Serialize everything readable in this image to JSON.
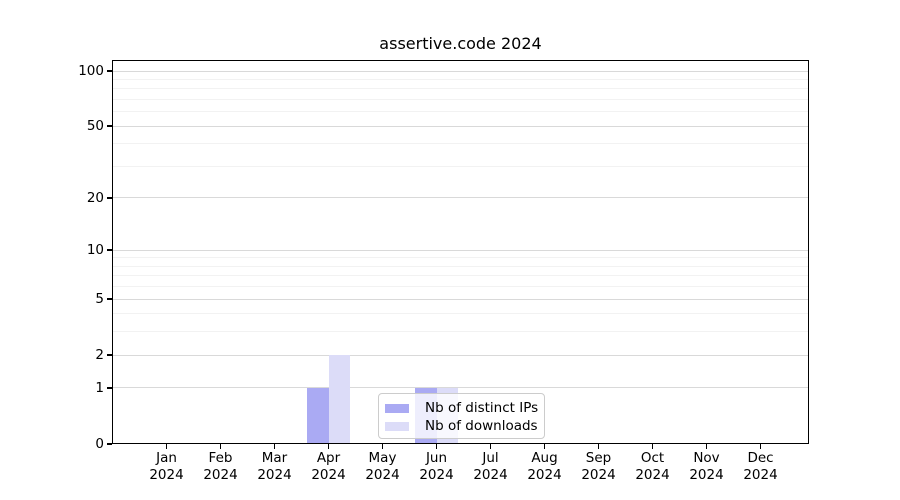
{
  "chart_data": {
    "type": "bar",
    "title": "assertive.code 2024",
    "categories": [
      "Jan",
      "Feb",
      "Mar",
      "Apr",
      "May",
      "Jun",
      "Jul",
      "Aug",
      "Sep",
      "Oct",
      "Nov",
      "Dec"
    ],
    "x_tick_year": "2024",
    "series": [
      {
        "name": "Nb of distinct IPs",
        "color": "#aaaaf3",
        "values": [
          0,
          0,
          0,
          1,
          0,
          1,
          0,
          0,
          0,
          0,
          0,
          0
        ]
      },
      {
        "name": "Nb of downloads",
        "color": "#dcdcf8",
        "values": [
          0,
          0,
          0,
          2,
          0,
          1,
          0,
          0,
          0,
          0,
          0,
          0
        ]
      }
    ],
    "xlabel": "",
    "ylabel": "",
    "yscale": "log1p",
    "ylim": [
      0,
      112
    ],
    "y_major_ticks": [
      0,
      1,
      2,
      5,
      10,
      20,
      50,
      100
    ],
    "y_minor_ticks": [
      3,
      4,
      6,
      7,
      8,
      9,
      30,
      40,
      60,
      70,
      80,
      90
    ],
    "grid": "horizontal",
    "legend_position": "lower-center"
  },
  "colors": {
    "background": "#ffffff",
    "spine": "#000000",
    "text": "#000000",
    "grid_major": "#d9d9d9",
    "grid_minor": "#f2f2f2",
    "legend_border": "#cccccc",
    "bar_distinct_ips": "#aaaaf3",
    "bar_downloads": "#dcdcf8"
  }
}
